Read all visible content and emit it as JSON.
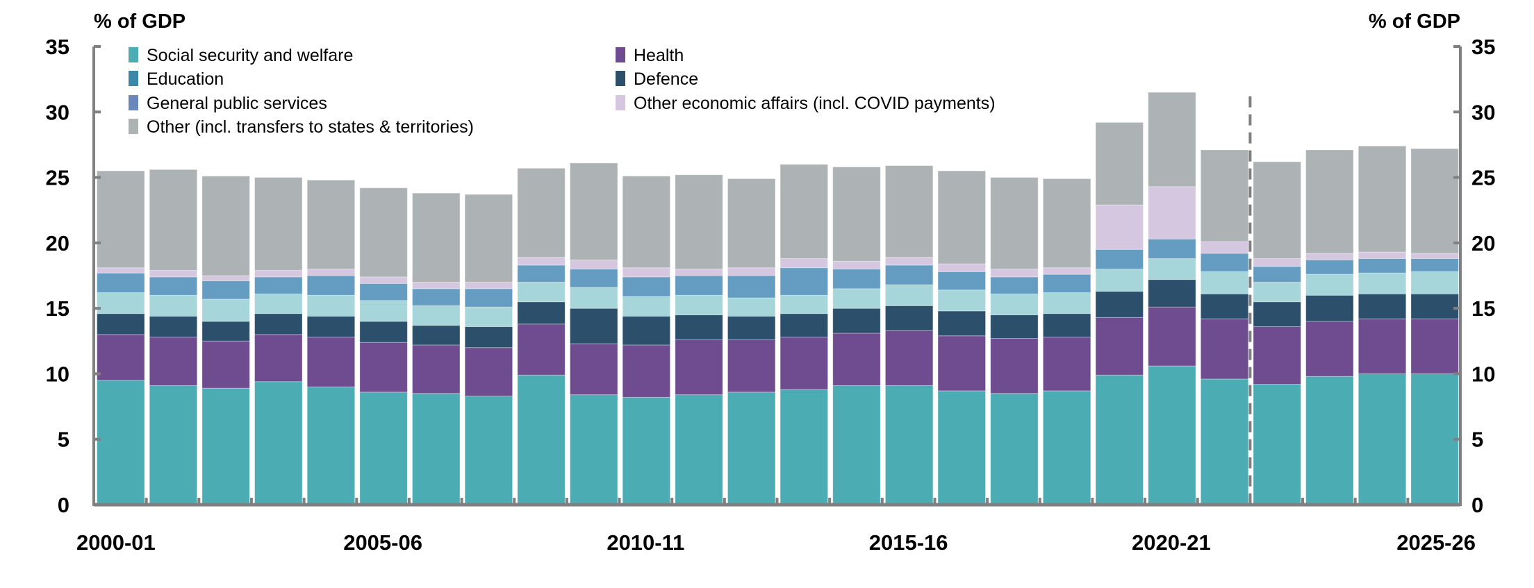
{
  "chart_data": {
    "type": "bar",
    "stacked": true,
    "ylabel_left": "% of GDP",
    "ylabel_right": "% of GDP",
    "ylim": [
      0,
      35
    ],
    "yticks": [
      0,
      5,
      10,
      15,
      20,
      25,
      30,
      35
    ],
    "grid": false,
    "legend_position": "top-left",
    "projection_divider_after": "2021-22",
    "categories": [
      "2000-01",
      "2001-02",
      "2002-03",
      "2003-04",
      "2004-05",
      "2005-06",
      "2006-07",
      "2007-08",
      "2008-09",
      "2009-10",
      "2010-11",
      "2011-12",
      "2012-13",
      "2013-14",
      "2014-15",
      "2015-16",
      "2016-17",
      "2017-18",
      "2018-19",
      "2019-20",
      "2020-21",
      "2021-22",
      "2022-23",
      "2023-24",
      "2024-25",
      "2025-26"
    ],
    "xtick_labels": [
      "2000-01",
      "2005-06",
      "2010-11",
      "2015-16",
      "2020-21",
      "2025-26"
    ],
    "series": [
      {
        "name": "Social security and welfare",
        "color": "#4bacb4",
        "legend_color": "#4bacb4",
        "values": [
          9.5,
          9.1,
          8.9,
          9.4,
          9.0,
          8.6,
          8.5,
          8.3,
          9.9,
          8.4,
          8.2,
          8.4,
          8.6,
          8.8,
          9.1,
          9.1,
          8.7,
          8.5,
          8.7,
          9.9,
          10.6,
          9.6,
          9.2,
          9.8,
          10.0,
          10.0
        ]
      },
      {
        "name": "Health",
        "color": "#6f4c8f",
        "legend_color": "#6f4c8f",
        "values": [
          3.5,
          3.7,
          3.6,
          3.6,
          3.8,
          3.8,
          3.7,
          3.7,
          3.9,
          3.9,
          4.0,
          4.2,
          4.0,
          4.0,
          4.0,
          4.2,
          4.2,
          4.2,
          4.1,
          4.4,
          4.5,
          4.6,
          4.4,
          4.2,
          4.2,
          4.2
        ]
      },
      {
        "name": "Defence",
        "color": "#2c506b",
        "legend_color": "#2c506b",
        "values": [
          1.6,
          1.6,
          1.5,
          1.6,
          1.6,
          1.6,
          1.5,
          1.6,
          1.7,
          2.7,
          2.2,
          1.9,
          1.8,
          1.8,
          1.9,
          1.9,
          1.9,
          1.8,
          1.8,
          2.0,
          2.1,
          1.9,
          1.9,
          2.0,
          1.9,
          1.9
        ]
      },
      {
        "name": "Education",
        "color": "#a6d5da",
        "legend_color": "#3a87a8",
        "values": [
          1.6,
          1.6,
          1.7,
          1.5,
          1.6,
          1.6,
          1.5,
          1.5,
          1.5,
          1.6,
          1.5,
          1.5,
          1.4,
          1.4,
          1.5,
          1.6,
          1.6,
          1.6,
          1.6,
          1.7,
          1.6,
          1.7,
          1.5,
          1.6,
          1.6,
          1.7
        ]
      },
      {
        "name": "General public services",
        "color": "#659dc2",
        "legend_color": "#6a87bd",
        "values": [
          1.5,
          1.4,
          1.4,
          1.3,
          1.5,
          1.3,
          1.3,
          1.4,
          1.3,
          1.4,
          1.5,
          1.5,
          1.7,
          2.1,
          1.5,
          1.5,
          1.4,
          1.3,
          1.4,
          1.5,
          1.5,
          1.4,
          1.2,
          1.1,
          1.1,
          1.0
        ]
      },
      {
        "name": "Other economic affairs (incl. COVID payments)",
        "color": "#d5c7e0",
        "legend_color": "#d5c7e0",
        "values": [
          0.4,
          0.5,
          0.4,
          0.5,
          0.5,
          0.5,
          0.5,
          0.5,
          0.6,
          0.7,
          0.7,
          0.5,
          0.6,
          0.7,
          0.6,
          0.6,
          0.6,
          0.6,
          0.5,
          3.4,
          4.0,
          0.9,
          0.6,
          0.5,
          0.5,
          0.4
        ]
      },
      {
        "name": "Other (incl. transfers to states & territories)",
        "color": "#adb2b4",
        "legend_color": "#adb2b4",
        "values": [
          7.4,
          7.7,
          7.6,
          7.1,
          6.8,
          6.8,
          6.8,
          6.7,
          6.8,
          7.4,
          7.0,
          7.2,
          6.8,
          7.2,
          7.2,
          7.0,
          7.1,
          7.0,
          6.8,
          6.3,
          7.2,
          7.0,
          7.4,
          7.9,
          8.1,
          8.0
        ]
      }
    ],
    "legend_order": [
      0,
      1,
      3,
      2,
      4,
      5,
      6
    ]
  }
}
